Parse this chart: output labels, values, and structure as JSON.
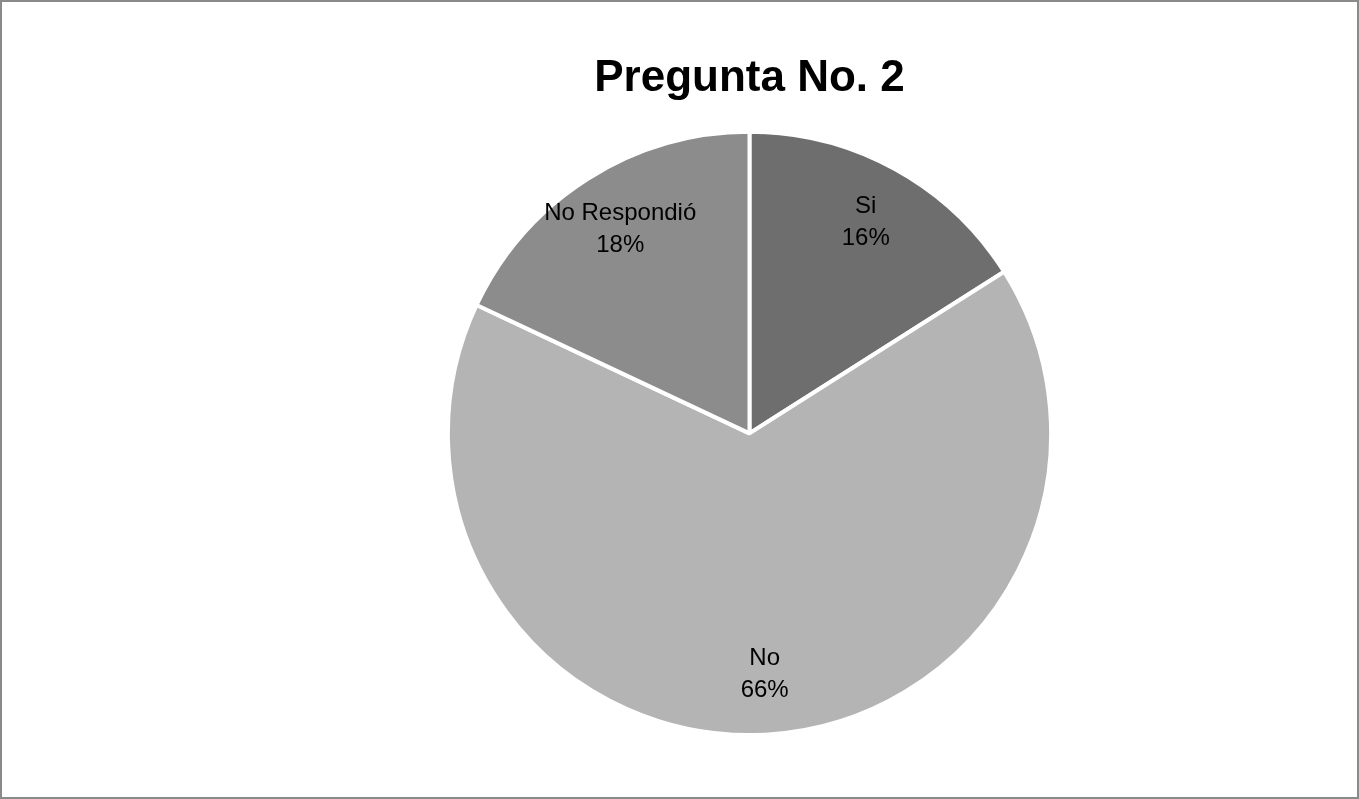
{
  "chart_data": {
    "type": "pie",
    "title": "Pregunta No. 2",
    "categories": [
      "Si",
      "No",
      "No Respondió"
    ],
    "values": [
      16,
      66,
      18
    ],
    "value_labels": [
      "16%",
      "66%",
      "18%"
    ],
    "colors": [
      "#6e6e6e",
      "#b4b4b4",
      "#8c8c8c"
    ],
    "legend": false
  }
}
